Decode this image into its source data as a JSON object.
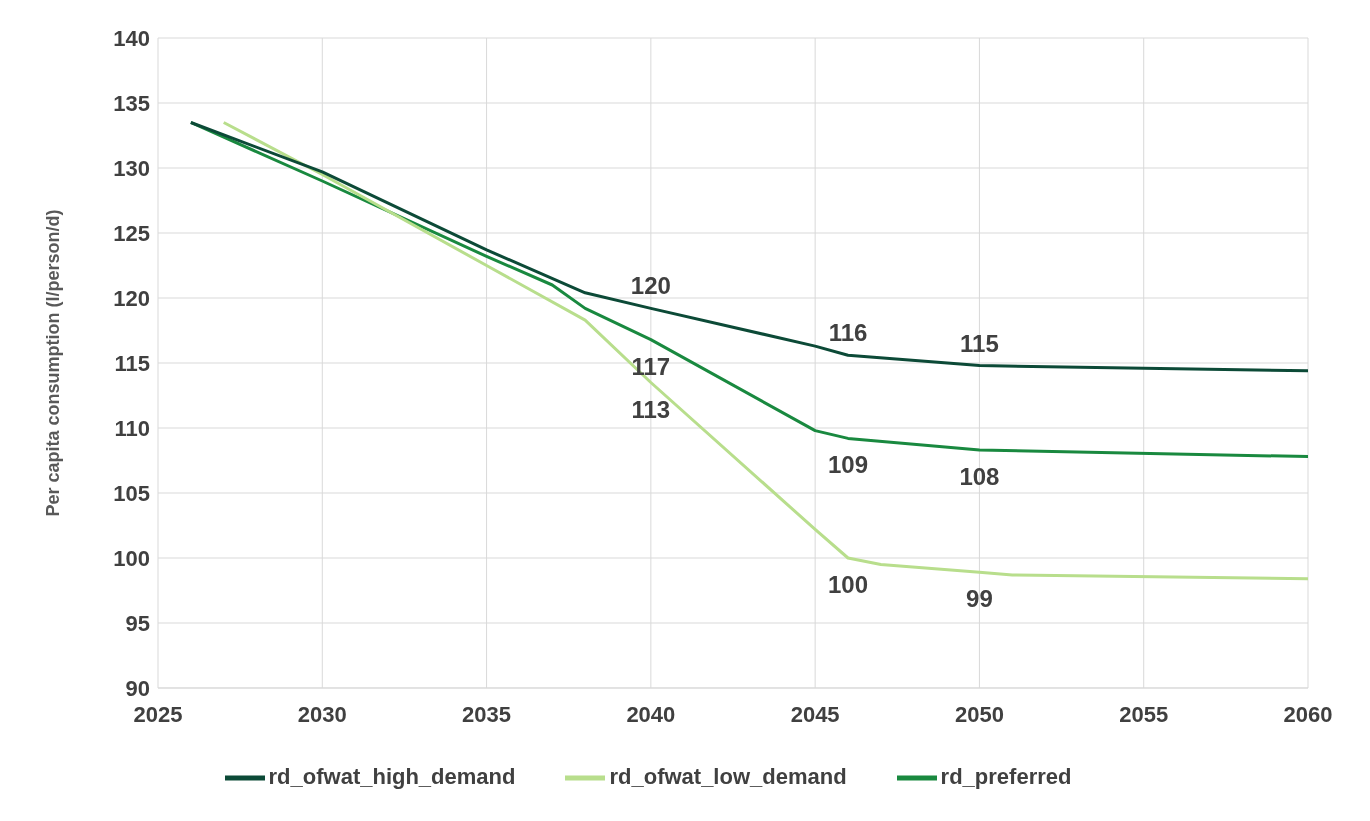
{
  "chart_data": {
    "type": "line",
    "ylabel": "Per capita consumption (l/person/d)",
    "xlim": [
      2025,
      2060
    ],
    "xticks": [
      2025,
      2030,
      2035,
      2040,
      2045,
      2050,
      2055,
      2060
    ],
    "ylim": [
      90,
      140
    ],
    "yticks": [
      90,
      95,
      100,
      105,
      110,
      115,
      120,
      125,
      130,
      135,
      140
    ],
    "grid": true,
    "legend": "bottom",
    "marker": "none",
    "line_style": "solid",
    "series": [
      {
        "name": "rd_preferred",
        "color": "#19893f",
        "x": [
          2026,
          2030,
          2035,
          2037,
          2038,
          2040,
          2045,
          2046,
          2050,
          2060
        ],
        "values": [
          133.5,
          129.0,
          123.2,
          121.0,
          119.2,
          116.8,
          109.8,
          109.2,
          108.3,
          107.8
        ]
      },
      {
        "name": "rd_ofwat_low_demand",
        "color": "#b8de8c",
        "x": [
          2027,
          2030,
          2035,
          2038,
          2040,
          2045,
          2046,
          2047,
          2050,
          2051,
          2060
        ],
        "values": [
          133.5,
          129.5,
          122.5,
          118.3,
          113.5,
          102.2,
          100.0,
          99.5,
          98.9,
          98.7,
          98.4
        ]
      },
      {
        "name": "rd_ofwat_high_demand",
        "color": "#0c4a37",
        "x": [
          2026,
          2030,
          2035,
          2038,
          2040,
          2045,
          2046,
          2050,
          2060
        ],
        "values": [
          133.5,
          129.7,
          123.7,
          120.4,
          119.2,
          116.3,
          115.6,
          114.8,
          114.4
        ]
      }
    ],
    "annotations": [
      {
        "text": "120",
        "x": 2040,
        "y": 119.2
      },
      {
        "text": "117",
        "x": 2040,
        "y": 116.8
      },
      {
        "text": "113",
        "x": 2040,
        "y": 113.5
      },
      {
        "text": "116",
        "x": 2046,
        "y": 115.6
      },
      {
        "text": "109",
        "x": 2046,
        "y": 109.2
      },
      {
        "text": "100",
        "x": 2046,
        "y": 100.0
      },
      {
        "text": "115",
        "x": 2050,
        "y": 114.8
      },
      {
        "text": "108",
        "x": 2050,
        "y": 108.3
      },
      {
        "text": "99",
        "x": 2050,
        "y": 98.9
      }
    ]
  }
}
